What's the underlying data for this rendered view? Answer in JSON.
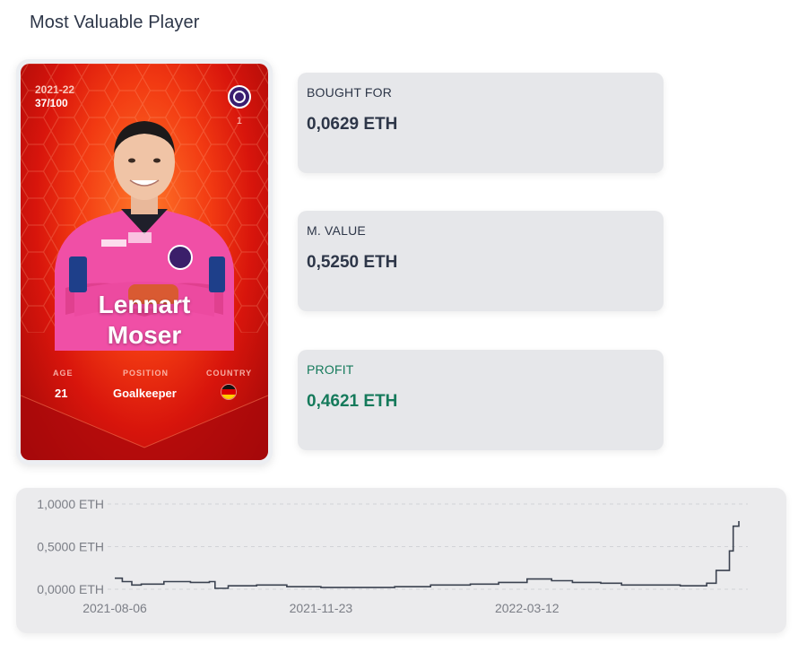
{
  "page": {
    "title": "Most Valuable Player"
  },
  "card": {
    "season": "2021-22",
    "serial": "37/100",
    "card_number": "1",
    "first_name": "Lennart",
    "last_name": "Moser",
    "age_label": "AGE",
    "age": "21",
    "position_label": "POSITION",
    "position": "Goalkeeper",
    "country_label": "COUNTRY",
    "country_flag_icon": "germany-flag-icon",
    "club_logo_icon": "club-crest-icon"
  },
  "stats": {
    "bought_label": "BOUGHT FOR",
    "bought_value": "0,0629 ETH",
    "market_label": "M. VALUE",
    "market_value": "0,5250 ETH",
    "profit_label": "PROFIT",
    "profit_value": "0,4621 ETH"
  },
  "colors": {
    "text": "#2d3648",
    "profit": "#157a5b",
    "line": "#3b4250"
  },
  "chart_data": {
    "type": "line",
    "title": "",
    "xlabel": "",
    "ylabel": "",
    "ylim": [
      0,
      1
    ],
    "y_ticks": [
      0,
      0.5,
      1
    ],
    "y_tick_labels": [
      "0,0000 ETH",
      "0,5000 ETH",
      "1,0000 ETH"
    ],
    "x_tick_labels": [
      "2021-08-06",
      "2021-11-23",
      "2022-03-12"
    ],
    "grid": true,
    "series": [
      {
        "x": [
          "2021-08-06",
          "2021-08-10",
          "2021-08-15",
          "2021-08-20",
          "2021-09-01",
          "2021-09-15",
          "2021-09-25",
          "2021-09-28",
          "2021-10-05",
          "2021-10-20",
          "2021-11-05",
          "2021-11-23",
          "2021-12-10",
          "2022-01-01",
          "2022-01-20",
          "2022-02-10",
          "2022-02-25",
          "2022-03-12",
          "2022-03-25",
          "2022-04-05",
          "2022-04-20",
          "2022-05-01",
          "2022-05-15",
          "2022-06-01",
          "2022-06-15",
          "2022-06-20",
          "2022-06-25",
          "2022-06-27",
          "2022-06-29",
          "2022-07-02"
        ],
        "y": [
          0.13,
          0.09,
          0.05,
          0.06,
          0.09,
          0.08,
          0.09,
          0.01,
          0.04,
          0.05,
          0.03,
          0.02,
          0.02,
          0.03,
          0.05,
          0.06,
          0.08,
          0.12,
          0.1,
          0.08,
          0.07,
          0.05,
          0.05,
          0.04,
          0.07,
          0.22,
          0.22,
          0.45,
          0.74,
          0.8
        ]
      }
    ]
  }
}
